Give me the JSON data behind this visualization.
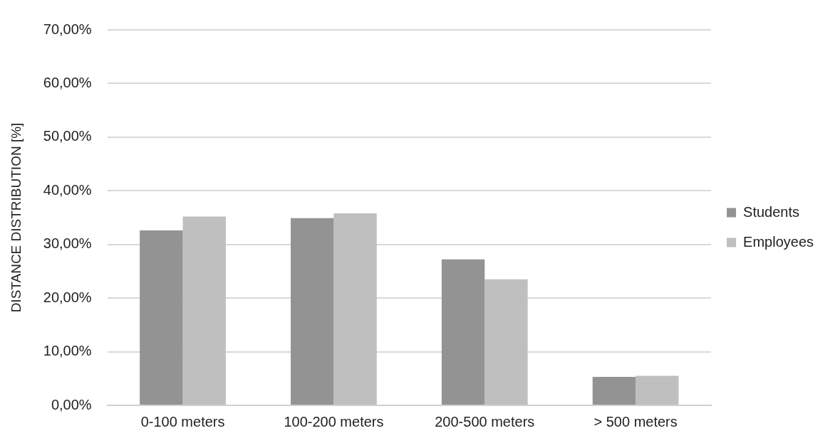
{
  "chart_data": {
    "type": "bar",
    "ylabel": "DISTANCE DISTRIBUTION [%]",
    "categories": [
      "0-100 meters",
      "100-200 meters",
      "200-500 meters",
      "> 500 meters"
    ],
    "series": [
      {
        "name": "Students",
        "color": "#939393",
        "values": [
          32.6,
          34.9,
          27.2,
          5.3
        ]
      },
      {
        "name": "Employees",
        "color": "#bfbfbf",
        "values": [
          35.2,
          35.8,
          23.5,
          5.5
        ]
      }
    ],
    "ylim": [
      0,
      70
    ],
    "yticks": [
      {
        "value": 0,
        "label": "0,00%"
      },
      {
        "value": 10,
        "label": "10,00%"
      },
      {
        "value": 20,
        "label": "20,00%"
      },
      {
        "value": 30,
        "label": "30,00%"
      },
      {
        "value": 40,
        "label": "40,00%"
      },
      {
        "value": 50,
        "label": "50,00%"
      },
      {
        "value": 60,
        "label": "60,00%"
      },
      {
        "value": 70,
        "label": "70,00%"
      }
    ],
    "grid": "y",
    "legend": "right"
  }
}
